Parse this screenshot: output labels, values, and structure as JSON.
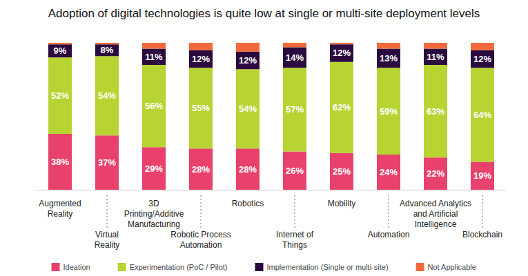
{
  "chart_data": {
    "type": "bar",
    "title": "Adoption of digital technologies is quite low at single or multi-site deployment levels",
    "categories": [
      "Augmented\nReality",
      "Virtual\nReality",
      "3D\nPrinting/Additive\nManufacturing",
      "Robotic Process\nAutomation",
      "Robotics",
      "Internet of\nThings",
      "Mobility",
      "Automation",
      "Advanced Analytics\nand Artificial\nIntelligence",
      "Blockchain"
    ],
    "series": [
      {
        "name": "Ideation",
        "color": "#e8416c",
        "data_labels": true,
        "values": [
          38,
          37,
          29,
          28,
          28,
          26,
          25,
          24,
          22,
          19
        ],
        "value_labels": [
          "38%",
          "37%",
          "29%",
          "28%",
          "28%",
          "26%",
          "25%",
          "24%",
          "22%",
          "19%"
        ]
      },
      {
        "name": "Experimentation (PoC / Pilot)",
        "color": "#b7d433",
        "data_labels": true,
        "values": [
          52,
          54,
          56,
          55,
          54,
          57,
          62,
          59,
          63,
          64
        ],
        "value_labels": [
          "52%",
          "54%",
          "56%",
          "55%",
          "54%",
          "57%",
          "62%",
          "59%",
          "63%",
          "64%"
        ]
      },
      {
        "name": "Implementation (Single or multi-site)",
        "color": "#2b0b3f",
        "data_labels": true,
        "values": [
          9,
          8,
          11,
          12,
          12,
          14,
          12,
          13,
          11,
          12
        ],
        "value_labels": [
          "9%",
          "8%",
          "11%",
          "12%",
          "12%",
          "14%",
          "12%",
          "13%",
          "11%",
          "12%"
        ]
      },
      {
        "name": "Not Applicable",
        "color": "#f26a3c",
        "data_labels": false,
        "values": [
          1,
          1,
          4,
          5,
          6,
          3,
          1,
          4,
          4,
          5
        ]
      }
    ],
    "ylim": [
      0,
      100
    ],
    "stacked": true,
    "grid": false,
    "legend": "bottom",
    "tick_labels": "x"
  }
}
